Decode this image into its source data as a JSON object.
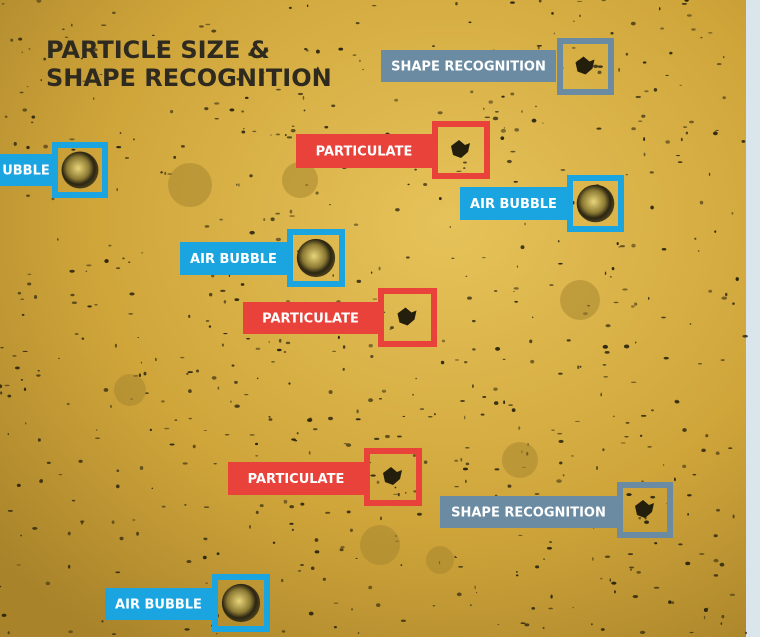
{
  "title": [
    "PARTICLE SIZE &",
    "SHAPE RECOGNITION"
  ],
  "labels": [
    {
      "text": "SHAPE RECOGNITION",
      "kind": "shape"
    },
    {
      "text": "UBBLE",
      "kind": "bubble"
    },
    {
      "text": "PARTICULATE",
      "kind": "particulate"
    },
    {
      "text": "AIR BUBBLE",
      "kind": "bubble"
    },
    {
      "text": "AIR BUBBLE",
      "kind": "bubble"
    },
    {
      "text": "PARTICULATE",
      "kind": "particulate"
    },
    {
      "text": "PARTICULATE",
      "kind": "particulate"
    },
    {
      "text": "SHAPE RECOGNITION",
      "kind": "shape"
    },
    {
      "text": "AIR BUBBLE",
      "kind": "bubble"
    }
  ]
}
